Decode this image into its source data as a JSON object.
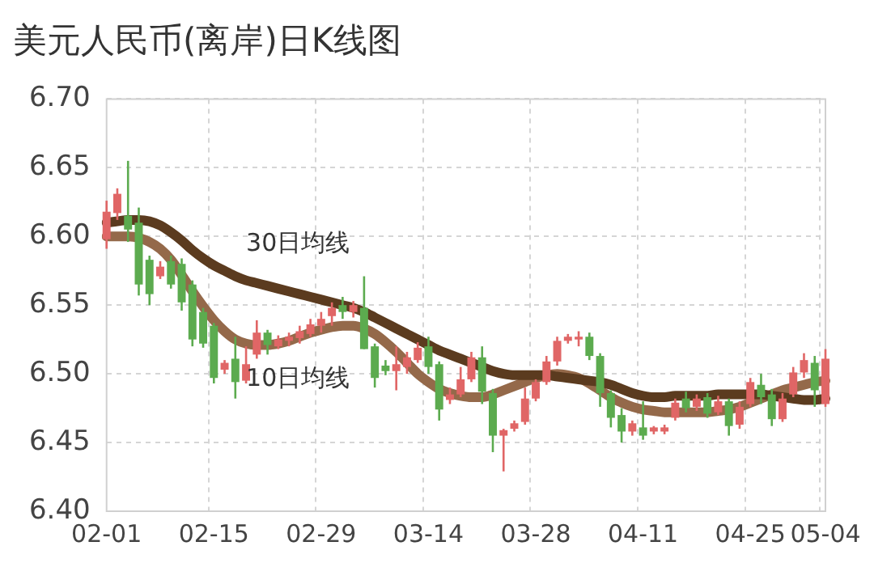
{
  "chart_data": {
    "type": "candlestick",
    "title": "美元人民币(离岸)日K线图",
    "categories": [
      "02-01",
      null,
      null,
      null,
      null,
      null,
      null,
      null,
      null,
      null,
      "02-15",
      null,
      null,
      null,
      null,
      null,
      null,
      null,
      null,
      null,
      "02-29",
      null,
      null,
      null,
      null,
      null,
      null,
      null,
      null,
      null,
      "03-14",
      null,
      null,
      null,
      null,
      null,
      null,
      null,
      null,
      null,
      "03-28",
      null,
      null,
      null,
      null,
      null,
      null,
      null,
      null,
      null,
      "04-11",
      null,
      null,
      null,
      null,
      null,
      null,
      null,
      null,
      null,
      "04-25",
      null,
      null,
      null,
      null,
      null,
      null,
      "05-04"
    ],
    "ohlc": [
      [
        6.598,
        6.626,
        6.591,
        6.618
      ],
      [
        6.617,
        6.635,
        6.612,
        6.631
      ],
      [
        6.615,
        6.655,
        6.596,
        6.605
      ],
      [
        6.61,
        6.621,
        6.557,
        6.565
      ],
      [
        6.583,
        6.586,
        6.55,
        6.558
      ],
      [
        6.571,
        6.582,
        6.569,
        6.578
      ],
      [
        6.582,
        6.586,
        6.562,
        6.565
      ],
      [
        6.58,
        6.584,
        6.546,
        6.552
      ],
      [
        6.565,
        6.568,
        6.52,
        6.525
      ],
      [
        6.545,
        6.548,
        6.519,
        6.522
      ],
      [
        6.535,
        6.537,
        6.493,
        6.497
      ],
      [
        6.503,
        6.51,
        6.5,
        6.508
      ],
      [
        6.511,
        6.527,
        6.482,
        6.494
      ],
      [
        6.495,
        6.52,
        6.493,
        6.507
      ],
      [
        6.514,
        6.539,
        6.511,
        6.53
      ],
      [
        6.53,
        6.532,
        6.514,
        6.521
      ],
      [
        6.52,
        6.528,
        6.518,
        6.525
      ],
      [
        6.524,
        6.53,
        6.52,
        6.527
      ],
      [
        6.526,
        6.535,
        6.522,
        6.531
      ],
      [
        6.529,
        6.54,
        6.527,
        6.536
      ],
      [
        6.535,
        6.545,
        6.53,
        6.54
      ],
      [
        6.542,
        6.552,
        6.535,
        6.548
      ],
      [
        6.55,
        6.556,
        6.54,
        6.545
      ],
      [
        6.545,
        6.553,
        6.541,
        6.55
      ],
      [
        6.548,
        6.571,
        6.518,
        6.518
      ],
      [
        6.52,
        6.522,
        6.49,
        6.497
      ],
      [
        6.506,
        6.51,
        6.499,
        6.502
      ],
      [
        6.502,
        6.52,
        6.488,
        6.507
      ],
      [
        6.505,
        6.516,
        6.5,
        6.512
      ],
      [
        6.51,
        6.523,
        6.508,
        6.519
      ],
      [
        6.52,
        6.527,
        6.5,
        6.505
      ],
      [
        6.507,
        6.509,
        6.466,
        6.474
      ],
      [
        6.481,
        6.49,
        6.478,
        6.485
      ],
      [
        6.485,
        6.505,
        6.483,
        6.496
      ],
      [
        6.496,
        6.516,
        6.494,
        6.512
      ],
      [
        6.512,
        6.52,
        6.478,
        6.487
      ],
      [
        6.486,
        6.489,
        6.443,
        6.455
      ],
      [
        6.455,
        6.46,
        6.429,
        6.459
      ],
      [
        6.46,
        6.466,
        6.458,
        6.464
      ],
      [
        6.465,
        6.49,
        6.463,
        6.482
      ],
      [
        6.482,
        6.496,
        6.48,
        6.494
      ],
      [
        6.494,
        6.513,
        6.492,
        6.509
      ],
      [
        6.509,
        6.527,
        6.506,
        6.524
      ],
      [
        6.524,
        6.529,
        6.522,
        6.527
      ],
      [
        6.525,
        6.531,
        6.52,
        6.527
      ],
      [
        6.527,
        6.53,
        6.51,
        6.513
      ],
      [
        6.513,
        6.515,
        6.476,
        6.486
      ],
      [
        6.486,
        6.488,
        6.461,
        6.468
      ],
      [
        6.47,
        6.475,
        6.45,
        6.458
      ],
      [
        6.458,
        6.466,
        6.455,
        6.464
      ],
      [
        6.461,
        6.48,
        6.452,
        6.455
      ],
      [
        6.458,
        6.462,
        6.456,
        6.461
      ],
      [
        6.458,
        6.463,
        6.456,
        6.461
      ],
      [
        6.468,
        6.482,
        6.466,
        6.479
      ],
      [
        6.482,
        6.487,
        6.472,
        6.475
      ],
      [
        6.476,
        6.485,
        6.473,
        6.482
      ],
      [
        6.483,
        6.486,
        6.468,
        6.471
      ],
      [
        6.472,
        6.484,
        6.47,
        6.48
      ],
      [
        6.48,
        6.482,
        6.455,
        6.462
      ],
      [
        6.463,
        6.48,
        6.46,
        6.476
      ],
      [
        6.478,
        6.497,
        6.476,
        6.494
      ],
      [
        6.492,
        6.5,
        6.478,
        6.483
      ],
      [
        6.485,
        6.489,
        6.462,
        6.467
      ],
      [
        6.467,
        6.486,
        6.465,
        6.482
      ],
      [
        6.485,
        6.505,
        6.483,
        6.501
      ],
      [
        6.501,
        6.515,
        6.497,
        6.51
      ],
      [
        6.508,
        6.513,
        6.476,
        6.488
      ],
      [
        6.478,
        6.518,
        6.476,
        6.511
      ]
    ],
    "colors": [
      "#e06666",
      "#e06666",
      "#5cab4f",
      "#5cab4f",
      "#5cab4f",
      "#e06666",
      "#5cab4f",
      "#5cab4f",
      "#5cab4f",
      "#5cab4f",
      "#5cab4f",
      "#e06666",
      "#5cab4f",
      "#e06666",
      "#e06666",
      "#5cab4f",
      "#e06666",
      "#e06666",
      "#e06666",
      "#e06666",
      "#e06666",
      "#e06666",
      "#5cab4f",
      "#e06666",
      "#5cab4f",
      "#5cab4f",
      "#5cab4f",
      "#e06666",
      "#e06666",
      "#e06666",
      "#5cab4f",
      "#5cab4f",
      "#e06666",
      "#e06666",
      "#e06666",
      "#5cab4f",
      "#5cab4f",
      "#e06666",
      "#e06666",
      "#e06666",
      "#e06666",
      "#e06666",
      "#e06666",
      "#e06666",
      "#e06666",
      "#5cab4f",
      "#5cab4f",
      "#5cab4f",
      "#5cab4f",
      "#e06666",
      "#5cab4f",
      "#e06666",
      "#e06666",
      "#e06666",
      "#5cab4f",
      "#e06666",
      "#5cab4f",
      "#e06666",
      "#5cab4f",
      "#e06666",
      "#e06666",
      "#5cab4f",
      "#5cab4f",
      "#e06666",
      "#e06666",
      "#e06666",
      "#5cab4f",
      "#e06666"
    ],
    "series": [
      {
        "type": "line",
        "name": "30日均线",
        "color": "#5b3b1f",
        "values": [
          6.61,
          6.611,
          6.612,
          6.612,
          6.611,
          6.608,
          6.603,
          6.597,
          6.59,
          6.584,
          6.579,
          6.575,
          6.571,
          6.568,
          6.566,
          6.564,
          6.562,
          6.56,
          6.558,
          6.556,
          6.554,
          6.552,
          6.55,
          6.548,
          6.545,
          6.541,
          6.537,
          6.533,
          6.529,
          6.525,
          6.521,
          6.517,
          6.514,
          6.511,
          6.508,
          6.505,
          6.502,
          6.5,
          6.499,
          6.499,
          6.499,
          6.499,
          6.498,
          6.497,
          6.496,
          6.495,
          6.494,
          6.492,
          6.489,
          6.486,
          6.484,
          6.483,
          6.483,
          6.484,
          6.484,
          6.484,
          6.484,
          6.485,
          6.485,
          6.485,
          6.485,
          6.485,
          6.484,
          6.483,
          6.482,
          6.481,
          6.481,
          6.482
        ]
      },
      {
        "type": "line",
        "name": "10日均线",
        "color": "#94694a",
        "values": [
          6.6,
          6.6,
          6.6,
          6.599,
          6.596,
          6.591,
          6.583,
          6.572,
          6.56,
          6.549,
          6.539,
          6.531,
          6.525,
          6.522,
          6.521,
          6.521,
          6.522,
          6.524,
          6.527,
          6.53,
          6.532,
          6.534,
          6.535,
          6.535,
          6.533,
          6.529,
          6.523,
          6.516,
          6.508,
          6.5,
          6.494,
          6.489,
          6.486,
          6.484,
          6.483,
          6.483,
          6.485,
          6.488,
          6.491,
          6.494,
          6.497,
          6.499,
          6.5,
          6.499,
          6.497,
          6.493,
          6.488,
          6.483,
          6.479,
          6.476,
          6.474,
          6.473,
          6.472,
          6.472,
          6.472,
          6.472,
          6.472,
          6.473,
          6.474,
          6.476,
          6.479,
          6.482,
          6.485,
          6.488,
          6.49,
          6.492,
          6.494,
          6.495
        ]
      }
    ],
    "ylim": [
      6.4,
      6.7
    ],
    "yticks": [
      {
        "value": 6.4,
        "label": "6.40"
      },
      {
        "value": 6.45,
        "label": "6.45"
      },
      {
        "value": 6.5,
        "label": "6.50"
      },
      {
        "value": 6.55,
        "label": "6.55"
      },
      {
        "value": 6.6,
        "label": "6.60"
      },
      {
        "value": 6.65,
        "label": "6.65"
      },
      {
        "value": 6.7,
        "label": "6.70"
      }
    ],
    "grid": true,
    "legend": false,
    "marker": "none",
    "line_style": "solid"
  }
}
